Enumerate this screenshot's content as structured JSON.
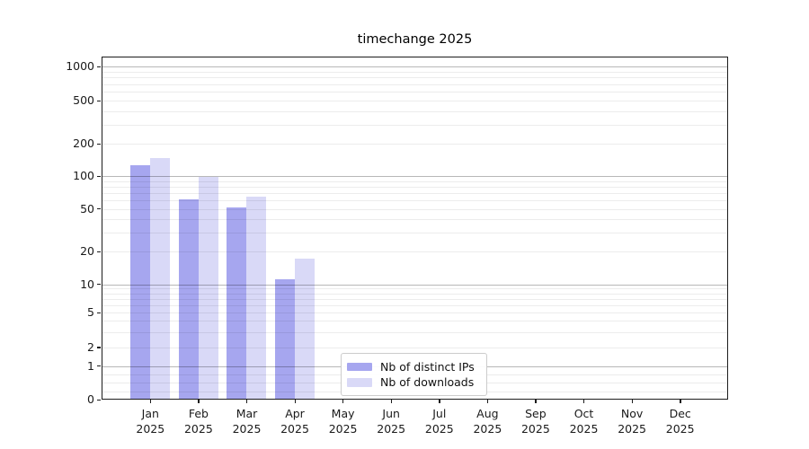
{
  "chart": {
    "title": "timechange 2025",
    "year_label": "2025",
    "months": [
      "Jan",
      "Feb",
      "Mar",
      "Apr",
      "May",
      "Jun",
      "Jul",
      "Aug",
      "Sep",
      "Oct",
      "Nov",
      "Dec"
    ]
  },
  "legend": {
    "items": [
      {
        "label": "Nb of distinct IPs",
        "color": "#a6a6ef"
      },
      {
        "label": "Nb of downloads",
        "color": "#d9d9f7"
      }
    ]
  },
  "chart_data": {
    "type": "bar",
    "title": "timechange 2025",
    "categories": [
      "Jan 2025",
      "Feb 2025",
      "Mar 2025",
      "Apr 2025",
      "May 2025",
      "Jun 2025",
      "Jul 2025",
      "Aug 2025",
      "Sep 2025",
      "Oct 2025",
      "Nov 2025",
      "Dec 2025"
    ],
    "series": [
      {
        "name": "Nb of distinct IPs",
        "color": "#a6a6ef",
        "values": [
          123,
          60,
          51,
          11,
          0,
          0,
          0,
          0,
          0,
          0,
          0,
          0
        ]
      },
      {
        "name": "Nb of downloads",
        "color": "#d9d9f7",
        "values": [
          144,
          96,
          64,
          17,
          0,
          0,
          0,
          0,
          0,
          0,
          0,
          0
        ]
      }
    ],
    "xlabel": "",
    "ylabel": "",
    "yscale": "symlog",
    "y_ticks": [
      0,
      1,
      2,
      5,
      10,
      20,
      50,
      100,
      200,
      500,
      1000
    ],
    "ylim": [
      0,
      1200
    ],
    "grid": "horizontal major and minor gridlines",
    "legend_position": "inside plot, lower middle"
  }
}
